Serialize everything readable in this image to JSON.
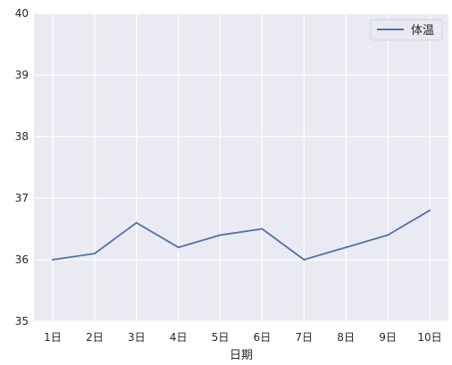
{
  "chart_data": {
    "type": "line",
    "categories": [
      "1日",
      "2日",
      "3日",
      "4日",
      "5日",
      "6日",
      "7日",
      "8日",
      "9日",
      "10日"
    ],
    "series": [
      {
        "name": "体温",
        "values": [
          36.0,
          36.1,
          36.6,
          36.2,
          36.4,
          36.5,
          36.0,
          36.2,
          36.4,
          36.8
        ],
        "color": "#4c72b0"
      }
    ],
    "title": "",
    "xlabel": "日期",
    "ylabel": "",
    "ylim": [
      35,
      40
    ],
    "yticks": [
      "35",
      "36",
      "37",
      "38",
      "39",
      "40"
    ],
    "grid": true,
    "legend_position": "top-right",
    "background_color": "#eaeaf2",
    "grid_color": "#ffffff"
  }
}
